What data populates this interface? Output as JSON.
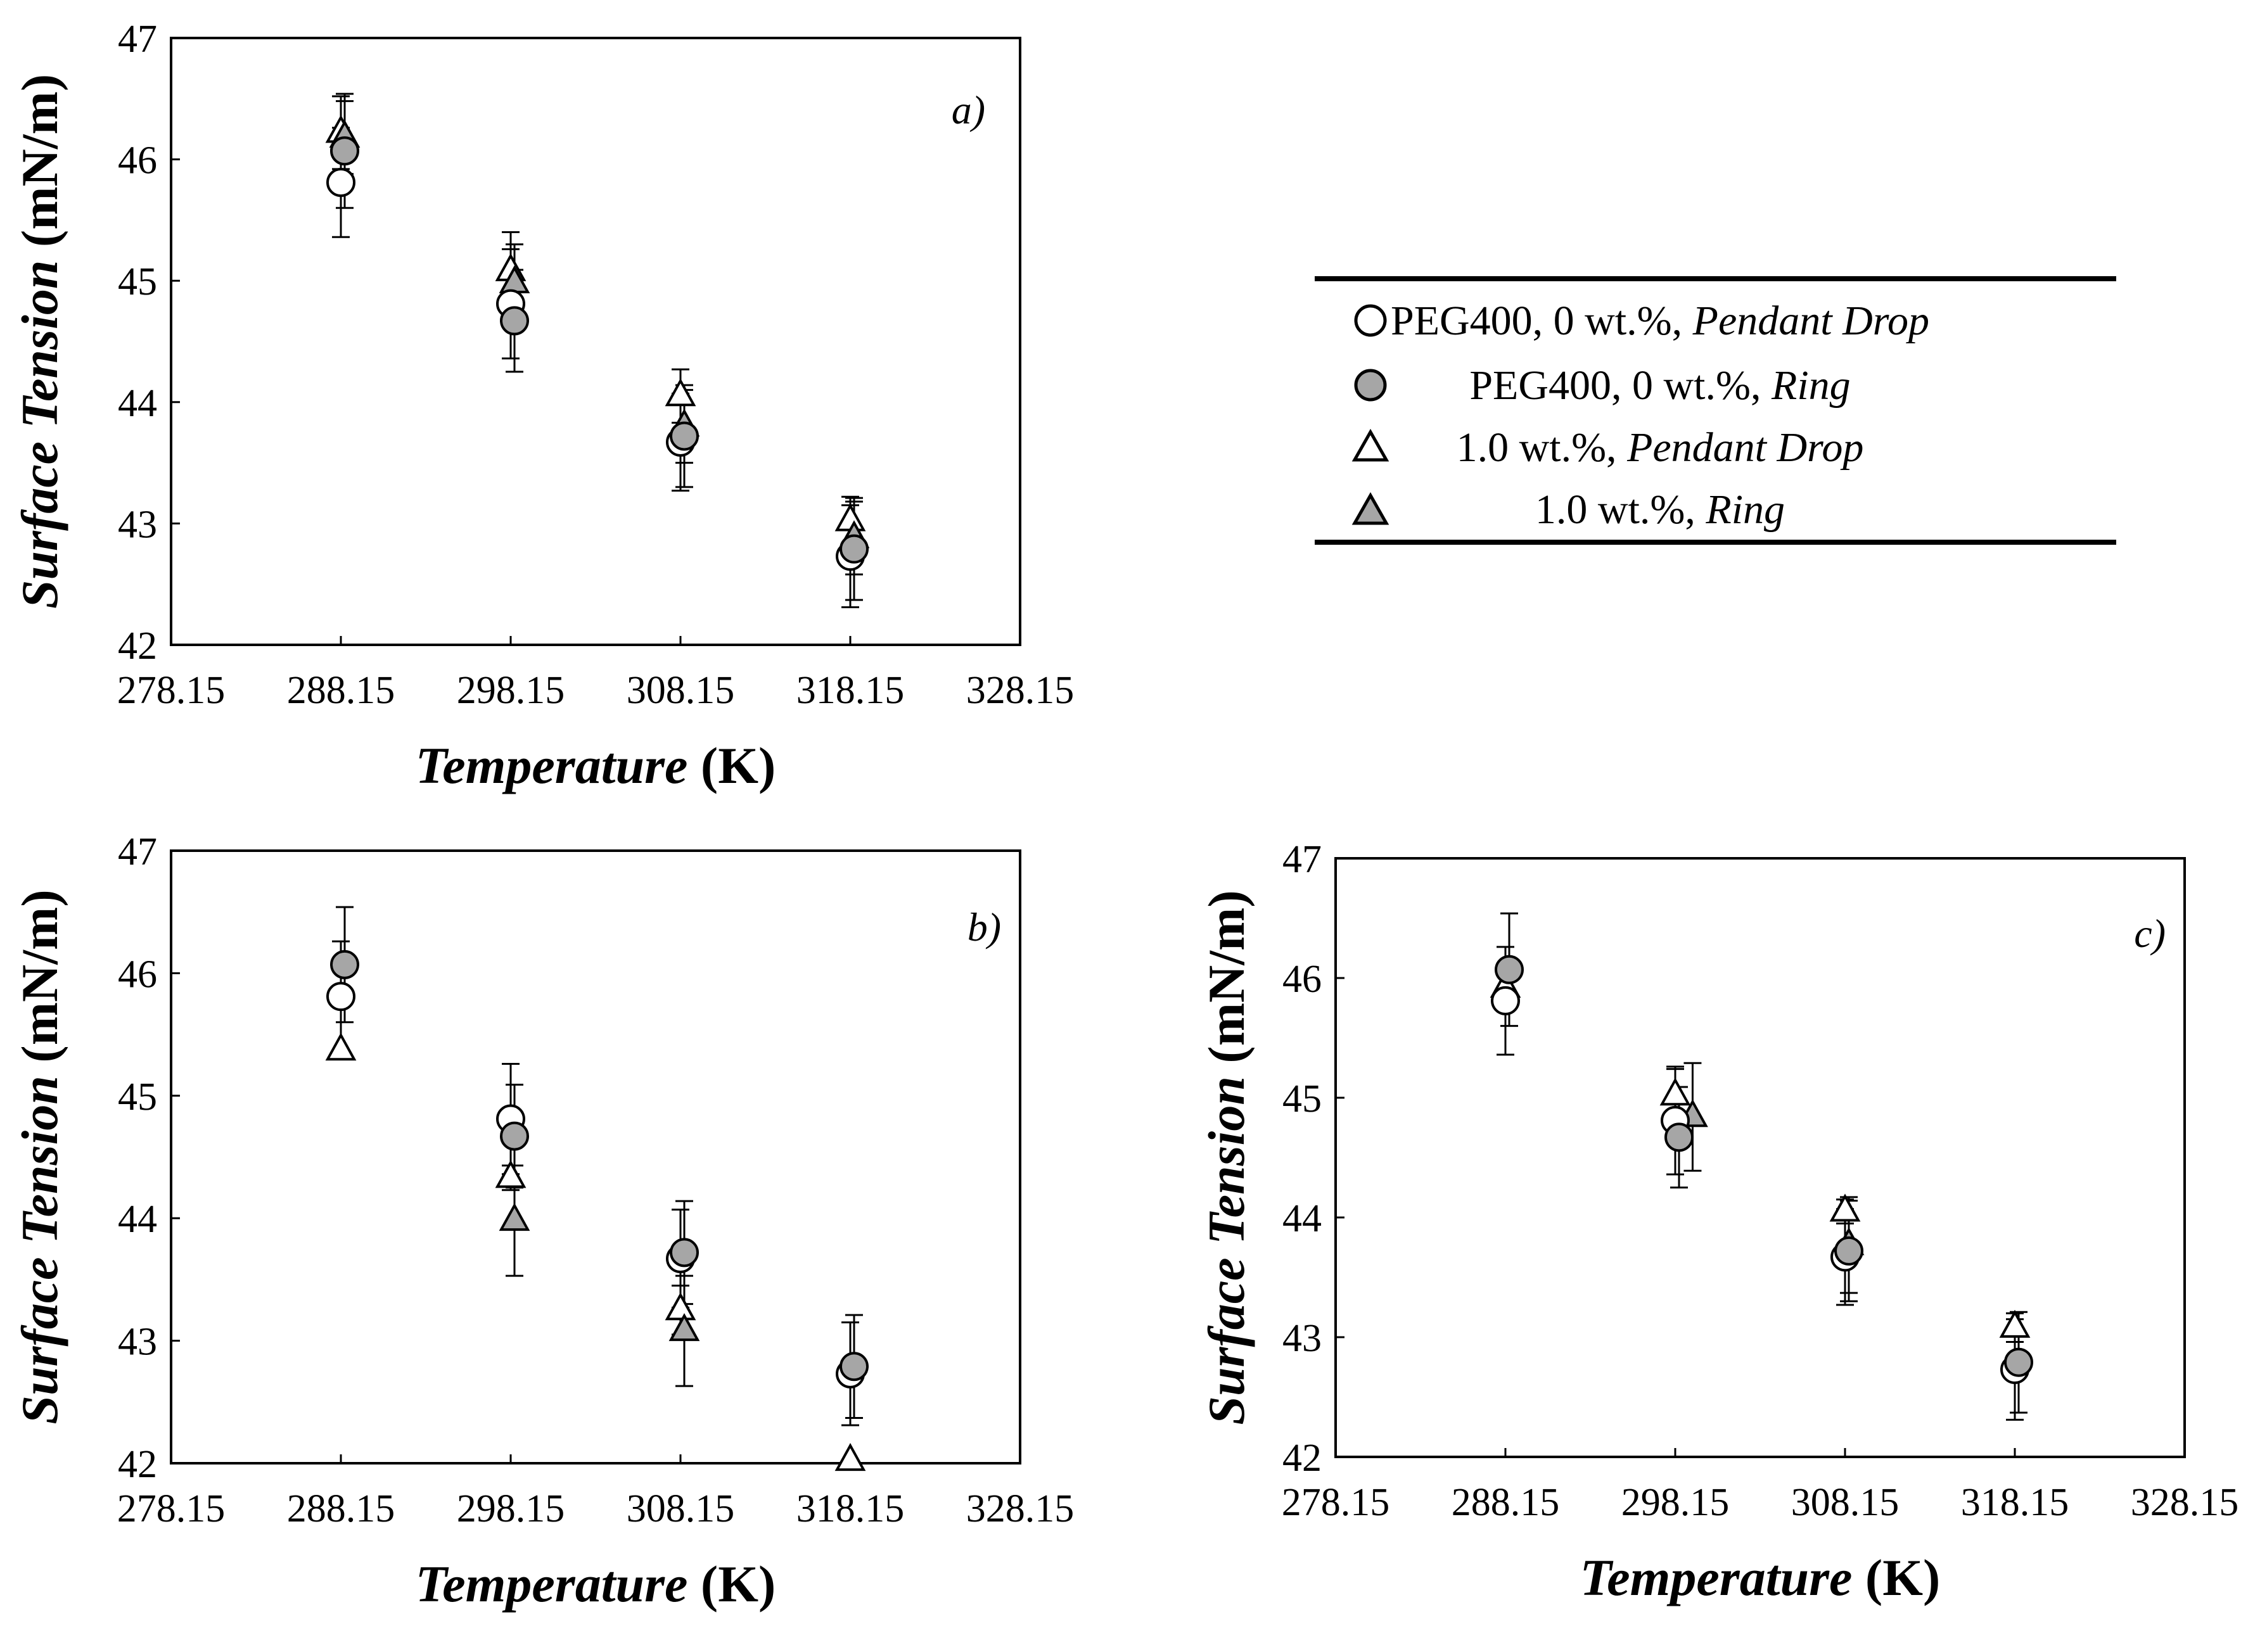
{
  "legend": {
    "entries": [
      {
        "series": "peg_pd",
        "plain": "PEG400, 0 wt.%, ",
        "italic": "Pendant Drop"
      },
      {
        "series": "peg_ring",
        "plain": "PEG400, 0 wt.%, ",
        "italic": "Ring"
      },
      {
        "series": "s1_pd",
        "plain": "1.0 wt.%, ",
        "italic": "Pendant Drop"
      },
      {
        "series": "s1_ring",
        "plain": "1.0 wt.%, ",
        "italic": "Ring"
      }
    ]
  },
  "colors": {
    "filled": "#a6a6a6",
    "stroke": "#000000",
    "open": "#ffffff"
  },
  "chart_data": [
    {
      "type": "scatter",
      "panel_label": "a)",
      "xlabel_italic": "Temperature",
      "xlabel_unit": "(K)",
      "ylabel_italic": "Surface Tension",
      "ylabel_unit": "(mN/m)",
      "xlim": [
        278.15,
        328.15
      ],
      "ylim": [
        42,
        47
      ],
      "xticks": [
        "278.15",
        "288.15",
        "298.15",
        "308.15",
        "318.15",
        "328.15"
      ],
      "yticks": [
        "42",
        "43",
        "44",
        "45",
        "46",
        "47"
      ],
      "series": [
        {
          "id": "peg_pd",
          "marker": "circle-open",
          "x": [
            288.15,
            298.15,
            308.15,
            318.15
          ],
          "y": [
            45.81,
            44.81,
            43.67,
            42.73
          ],
          "err": [
            0.45,
            0.45,
            0.4,
            0.42
          ]
        },
        {
          "id": "peg_ring",
          "marker": "circle-filled",
          "x": [
            288.15,
            298.15,
            308.15,
            318.15
          ],
          "y": [
            46.07,
            44.67,
            43.72,
            42.79
          ],
          "err": [
            0.47,
            0.42,
            0.42,
            0.42
          ]
        },
        {
          "id": "s1_pd",
          "marker": "triangle-open",
          "x": [
            288.15,
            298.15,
            308.15,
            318.15
          ],
          "y": [
            46.22,
            45.08,
            44.05,
            43.02
          ],
          "err": [
            0.3,
            0.32,
            0.22,
            0.2
          ]
        },
        {
          "id": "s1_ring",
          "marker": "triangle-filled",
          "x": [
            288.15,
            298.15,
            308.15,
            318.15
          ],
          "y": [
            46.18,
            44.98,
            43.8,
            42.88
          ],
          "err": [
            0.3,
            0.32,
            0.3,
            0.3
          ]
        }
      ]
    },
    {
      "type": "scatter",
      "panel_label": "b)",
      "xlabel_italic": "Temperature",
      "xlabel_unit": "(K)",
      "ylabel_italic": "Surface Tension",
      "ylabel_unit": "(mN/m)",
      "xlim": [
        278.15,
        328.15
      ],
      "ylim": [
        42,
        47
      ],
      "xticks": [
        "278.15",
        "288.15",
        "298.15",
        "308.15",
        "318.15",
        "328.15"
      ],
      "yticks": [
        "42",
        "43",
        "44",
        "45",
        "46",
        "47"
      ],
      "series": [
        {
          "id": "peg_pd",
          "marker": "circle-open",
          "x": [
            288.15,
            298.15,
            308.15,
            318.15
          ],
          "y": [
            45.81,
            44.81,
            43.67,
            42.73
          ],
          "err": [
            0.45,
            0.45,
            0.4,
            0.42
          ]
        },
        {
          "id": "peg_ring",
          "marker": "circle-filled",
          "x": [
            288.15,
            298.15,
            308.15,
            318.15
          ],
          "y": [
            46.07,
            44.67,
            43.72,
            42.79
          ],
          "err": [
            0.47,
            0.42,
            0.42,
            0.42
          ]
        },
        {
          "id": "s1_pd",
          "marker": "triangle-open",
          "x": [
            288.15,
            298.15,
            308.15,
            318.15
          ],
          "y": [
            45.37,
            44.33,
            43.25,
            42.02
          ],
          "err": [
            0,
            0.1,
            0.2,
            0
          ]
        },
        {
          "id": "s1_ring",
          "marker": "triangle-filled",
          "x": [
            288.15,
            298.15,
            308.15,
            318.15
          ],
          "y": [
            null,
            43.98,
            43.08,
            null
          ],
          "err": [
            0,
            0.45,
            0.45,
            0
          ]
        }
      ]
    },
    {
      "type": "scatter",
      "panel_label": "c)",
      "xlabel_italic": "Temperature",
      "xlabel_unit": "(K)",
      "ylabel_italic": "Surface Tension",
      "ylabel_unit": "(mN/m)",
      "xlim": [
        278.15,
        328.15
      ],
      "ylim": [
        42,
        47
      ],
      "xticks": [
        "278.15",
        "288.15",
        "298.15",
        "308.15",
        "318.15",
        "328.15"
      ],
      "yticks": [
        "42",
        "43",
        "44",
        "45",
        "46",
        "47"
      ],
      "series": [
        {
          "id": "peg_pd",
          "marker": "circle-open",
          "x": [
            288.15,
            298.15,
            308.15,
            318.15
          ],
          "y": [
            45.81,
            44.81,
            43.67,
            42.73
          ],
          "err": [
            0.45,
            0.45,
            0.4,
            0.42
          ]
        },
        {
          "id": "peg_ring",
          "marker": "circle-filled",
          "x": [
            288.15,
            298.15,
            308.15,
            318.15
          ],
          "y": [
            46.07,
            44.67,
            43.72,
            42.79
          ],
          "err": [
            0.47,
            0.42,
            0.42,
            0.42
          ]
        },
        {
          "id": "s1_pd",
          "marker": "triangle-open",
          "x": [
            288.15,
            298.15,
            308.15,
            318.15
          ],
          "y": [
            45.92,
            45.02,
            44.05,
            43.08
          ],
          "err": [
            0.2,
            0.22,
            0.1,
            0.12
          ]
        },
        {
          "id": "s1_ring",
          "marker": "triangle-filled",
          "x": [
            288.15,
            298.95,
            308.15,
            318.15
          ],
          "y": [
            null,
            44.84,
            43.77,
            null
          ],
          "err": [
            0,
            0.45,
            0.4,
            0
          ]
        }
      ]
    }
  ]
}
